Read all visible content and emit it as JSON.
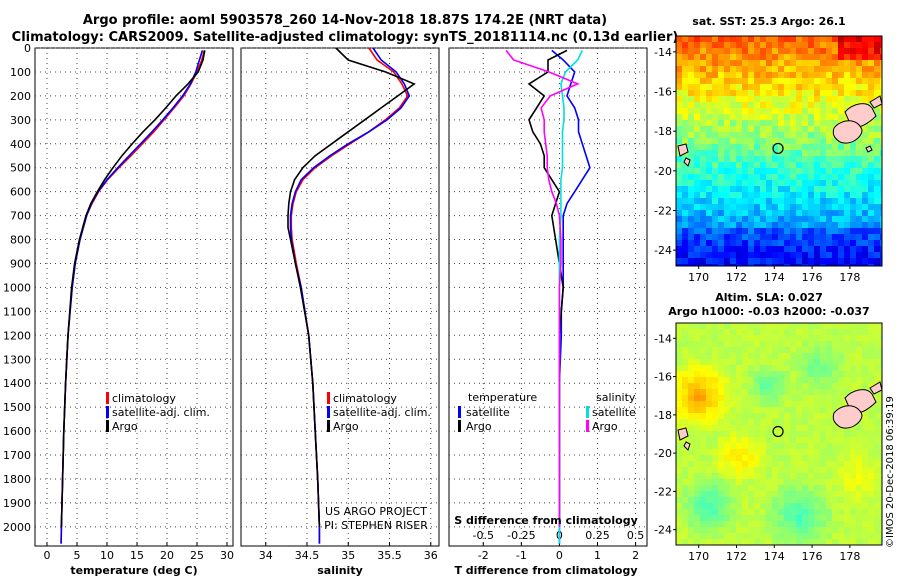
{
  "titles": {
    "line1": "Argo profile: aoml 5903578_260 14-Nov-2018 18.87S 174.2E (NRT data)",
    "line2": "Climatology: CARS2009. Satellite-adjusted climatology: synTS_20181114.nc (0.13d earlier)"
  },
  "colors": {
    "climatology": "#ff0000",
    "satellite_clim": "#0000ff",
    "argo": "#000000",
    "salinity_diff_satellite": "#00e0e0",
    "salinity_diff_argo": "#ff00ff"
  },
  "chart_data": [
    {
      "type": "line",
      "name": "temperature-profile",
      "xlabel": "temperature (deg C)",
      "xlim": [
        -2,
        31
      ],
      "ylim": [
        2080,
        0
      ],
      "xticks": [
        "0",
        "5",
        "10",
        "15",
        "20",
        "25",
        "30"
      ],
      "xtick_values": [
        0,
        5,
        10,
        15,
        20,
        25,
        30
      ],
      "yticks": [
        "0",
        "100",
        "200",
        "300",
        "400",
        "500",
        "600",
        "700",
        "800",
        "900",
        "1000",
        "1100",
        "1200",
        "1300",
        "1400",
        "1500",
        "1600",
        "1700",
        "1800",
        "1900",
        "2000"
      ],
      "ytick_values": [
        0,
        100,
        200,
        300,
        400,
        500,
        600,
        700,
        800,
        900,
        1000,
        1100,
        1200,
        1300,
        1400,
        1500,
        1600,
        1700,
        1800,
        1900,
        2000
      ],
      "depth": [
        10,
        50,
        100,
        150,
        200,
        250,
        300,
        350,
        400,
        450,
        500,
        550,
        600,
        650,
        700,
        800,
        900,
        1000,
        1200,
        1400,
        1600,
        1800,
        2000,
        2070
      ],
      "series": [
        {
          "name": "climatology",
          "values": [
            26.2,
            25.8,
            25.0,
            24.0,
            22.8,
            21.2,
            19.5,
            17.8,
            15.9,
            14.0,
            12.0,
            10.1,
            8.6,
            7.5,
            6.6,
            5.5,
            4.7,
            4.2,
            3.5,
            3.1,
            2.8,
            2.6,
            2.4,
            2.35
          ]
        },
        {
          "name": "satellite-adj. clim.",
          "values": [
            25.9,
            25.4,
            24.8,
            23.9,
            22.6,
            21.0,
            19.3,
            17.5,
            15.6,
            13.7,
            11.8,
            10.0,
            8.5,
            7.4,
            6.6,
            5.5,
            4.7,
            4.2,
            3.5,
            3.1,
            2.8,
            2.6,
            2.4,
            2.35
          ]
        },
        {
          "name": "Argo",
          "values": [
            26.3,
            26.0,
            25.2,
            23.5,
            21.5,
            19.8,
            18.0,
            16.0,
            14.2,
            12.5,
            11.0,
            9.6,
            8.4,
            7.3,
            6.5,
            5.4,
            4.6,
            4.1,
            3.5,
            3.1,
            2.8,
            2.6,
            2.4
          ]
        }
      ],
      "legend": [
        "climatology",
        "satellite-adj. clim.",
        "Argo"
      ]
    },
    {
      "type": "line",
      "name": "salinity-profile",
      "xlabel": "salinity",
      "xlim": [
        33.7,
        36.1
      ],
      "ylim": [
        2080,
        0
      ],
      "xticks": [
        "34",
        "34.5",
        "35",
        "35.5",
        "36"
      ],
      "xtick_values": [
        34,
        34.5,
        35,
        35.5,
        36
      ],
      "depth": [
        0,
        50,
        100,
        150,
        200,
        250,
        300,
        350,
        400,
        450,
        500,
        550,
        600,
        650,
        700,
        750,
        800,
        900,
        1000,
        1200,
        1400,
        1600,
        1800,
        2000,
        2070
      ],
      "series": [
        {
          "name": "climatology",
          "values": [
            35.25,
            35.35,
            35.55,
            35.65,
            35.72,
            35.62,
            35.45,
            35.25,
            35.02,
            34.8,
            34.6,
            34.45,
            34.37,
            34.33,
            34.31,
            34.31,
            34.32,
            34.37,
            34.43,
            34.52,
            34.57,
            34.6,
            34.63,
            34.65,
            34.65
          ]
        },
        {
          "name": "satellite-adj. clim.",
          "values": [
            35.3,
            35.4,
            35.58,
            35.68,
            35.74,
            35.64,
            35.47,
            35.25,
            35.0,
            34.78,
            34.58,
            34.43,
            34.36,
            34.32,
            34.3,
            34.3,
            34.31,
            34.36,
            34.43,
            34.52,
            34.57,
            34.6,
            34.63,
            34.65,
            34.65
          ]
        },
        {
          "name": "Argo",
          "values": [
            34.85,
            35.0,
            35.45,
            35.8,
            35.6,
            35.4,
            35.2,
            35.0,
            34.8,
            34.6,
            34.45,
            34.35,
            34.3,
            34.28,
            34.27,
            34.27,
            34.3,
            34.36,
            34.42,
            34.52,
            34.57,
            34.6,
            34.63,
            34.65
          ]
        }
      ],
      "legend": [
        "climatology",
        "satellite-adj. clim.",
        "Argo"
      ],
      "annotations": [
        "US ARGO PROJECT",
        "PI: STEPHEN RISER"
      ]
    },
    {
      "type": "line",
      "name": "difference-profile",
      "xlabel": "T difference from climatology",
      "xlabel2": "S difference from climatology",
      "xlim": [
        -2.9,
        2.3
      ],
      "ylim": [
        2080,
        0
      ],
      "xticks": [
        "-2",
        "-1",
        "0",
        "1",
        "2"
      ],
      "xtick_values": [
        -2,
        -1,
        0,
        1,
        2
      ],
      "s_ticks": [
        "-0.5",
        "-0.25",
        "0",
        "0.25",
        "0.5"
      ],
      "s_tick_values": [
        -0.5,
        -0.25,
        0,
        0.25,
        0.5
      ],
      "s_scale_factor": 4,
      "depth": [
        10,
        50,
        100,
        150,
        200,
        250,
        300,
        350,
        400,
        450,
        500,
        550,
        600,
        650,
        700,
        800,
        900,
        1000,
        1100,
        1200,
        1400,
        1600,
        1800,
        2000,
        2070
      ],
      "series": [
        {
          "name": "temperature satellite",
          "values": [
            -0.2,
            0.1,
            0.4,
            0.3,
            0.2,
            0.4,
            0.5,
            0.5,
            0.6,
            0.7,
            0.8,
            0.6,
            0.4,
            0.2,
            0.1,
            0.1,
            0.1,
            0.1,
            0.05,
            0.05,
            0.0,
            0.0,
            0.0,
            0.0,
            0.0
          ]
        },
        {
          "name": "temperature Argo",
          "values": [
            0.2,
            -0.3,
            -0.3,
            -0.8,
            -0.4,
            -0.6,
            -0.8,
            -0.7,
            -0.5,
            -0.4,
            -0.4,
            -0.2,
            0.0,
            -0.1,
            -0.2,
            -0.1,
            0.0,
            0.1,
            0.05,
            0.0,
            0.0,
            0.0,
            0.0,
            0.0
          ]
        },
        {
          "name": "salinity satellite",
          "values": [
            0.15,
            0.12,
            0.04,
            0.01,
            0.02,
            0.03,
            0.03,
            0.02,
            0.02,
            0.02,
            0.02,
            0.01,
            0.01,
            0.01,
            0.01,
            0.0,
            0.0,
            0.0,
            0.0,
            0.0,
            0.0,
            0.0,
            0.0,
            0.0,
            0.0
          ]
        },
        {
          "name": "salinity Argo",
          "values": [
            -0.35,
            -0.3,
            -0.07,
            0.12,
            -0.06,
            -0.12,
            -0.1,
            -0.1,
            -0.09,
            -0.08,
            -0.08,
            -0.07,
            -0.05,
            -0.02,
            0.0,
            0.01,
            0.01,
            0.0,
            0.0,
            0.0,
            0.0,
            0.0,
            0.0,
            0.0
          ]
        }
      ],
      "legend_temperature": {
        "header": "temperature",
        "items": [
          "satellite",
          "Argo"
        ]
      },
      "legend_salinity": {
        "header": "salinity",
        "items": [
          "satellite",
          "Argo"
        ]
      }
    },
    {
      "type": "heatmap",
      "name": "sst-map",
      "title": "sat. SST: 25.3 Argo: 26.1",
      "xticks": [
        "170",
        "172",
        "174",
        "176",
        "178"
      ],
      "xtick_values": [
        170,
        172,
        174,
        176,
        178
      ],
      "yticks": [
        "-14",
        "-16",
        "-18",
        "-20",
        "-22",
        "-24"
      ],
      "ytick_values": [
        -14,
        -16,
        -18,
        -20,
        -22,
        -24
      ],
      "xlim": [
        168.8,
        179.7
      ],
      "ylim": [
        -13.2,
        -24.8
      ],
      "float_position": [
        174.2,
        -18.87
      ],
      "colormap": "jet-like: warm north, cool south"
    },
    {
      "type": "heatmap",
      "name": "sla-map",
      "title_line1": "Altim. SLA: 0.027",
      "title_line2": "Argo h1000: -0.03 h2000: -0.037",
      "xticks": [
        "170",
        "172",
        "174",
        "176",
        "178"
      ],
      "xtick_values": [
        170,
        172,
        174,
        176,
        178
      ],
      "yticks": [
        "-14",
        "-16",
        "-18",
        "-20",
        "-22",
        "-24"
      ],
      "ytick_values": [
        -14,
        -16,
        -18,
        -20,
        -22,
        -24
      ],
      "xlim": [
        168.8,
        179.7
      ],
      "ylim": [
        -13.2,
        -24.8
      ],
      "float_position": [
        174.2,
        -18.87
      ]
    }
  ],
  "footer_stamp": "©IMOS 20-Dec-2018 06:39:19"
}
